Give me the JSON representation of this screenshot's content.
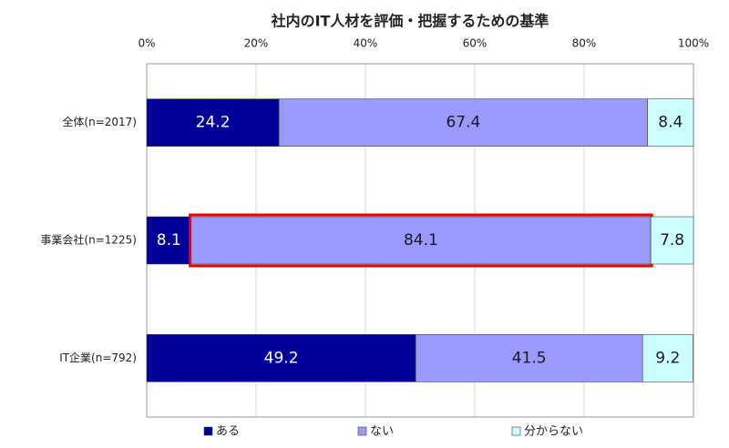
{
  "chart_data": {
    "type": "stacked-barh",
    "title": "社内のIT人材を評価・把握するための基準",
    "categories": [
      "全体(n=2017)",
      "事業会社(n=1225)",
      "IT企業(n=792)"
    ],
    "series": [
      {
        "name": "ある",
        "color": "#000099",
        "label_color": "#ffffff",
        "values": [
          24.2,
          8.1,
          49.2
        ]
      },
      {
        "name": "ない",
        "color": "#9999ff",
        "label_color": "#1a1a1a",
        "values": [
          67.4,
          84.1,
          41.5
        ]
      },
      {
        "name": "分からない",
        "color": "#ccffff",
        "label_color": "#1a1a1a",
        "values": [
          8.4,
          7.8,
          9.2
        ]
      }
    ],
    "xlim": [
      0,
      100
    ],
    "xticks": [
      {
        "value": 0,
        "label": "0%"
      },
      {
        "value": 20,
        "label": "20%"
      },
      {
        "value": 40,
        "label": "40%"
      },
      {
        "value": 60,
        "label": "60%"
      },
      {
        "value": 80,
        "label": "80%"
      },
      {
        "value": 100,
        "label": "100%"
      }
    ],
    "grid": true,
    "legend": "bottom"
  }
}
